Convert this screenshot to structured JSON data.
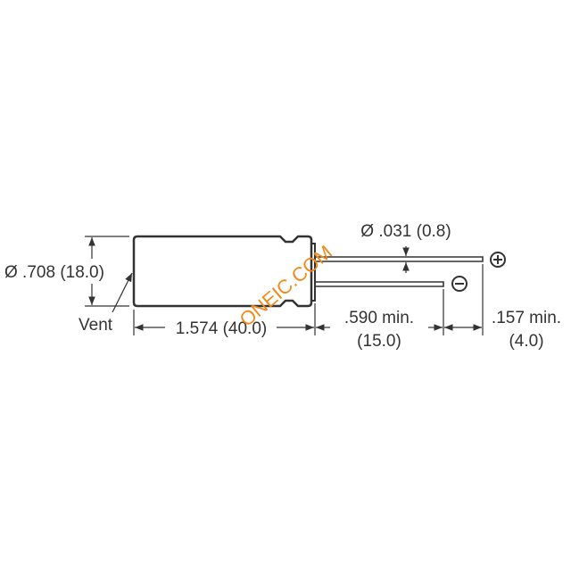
{
  "labels": {
    "body_diameter": "Ø .708 (18.0)",
    "vent": "Vent",
    "body_length": "1.574 (40.0)",
    "lead_diameter": "Ø .031 (0.8)",
    "lead_length_line1": ".590 min.",
    "lead_length_line2": "(15.0)",
    "lead_offset_line1": ".157 min.",
    "lead_offset_line2": "(4.0)"
  },
  "symbols": {
    "positive": "plus-circle-icon",
    "negative": "minus-circle-icon"
  },
  "watermark": "ONEIC.COM",
  "colors": {
    "line": "#333333",
    "watermark": "#f08a1c"
  }
}
